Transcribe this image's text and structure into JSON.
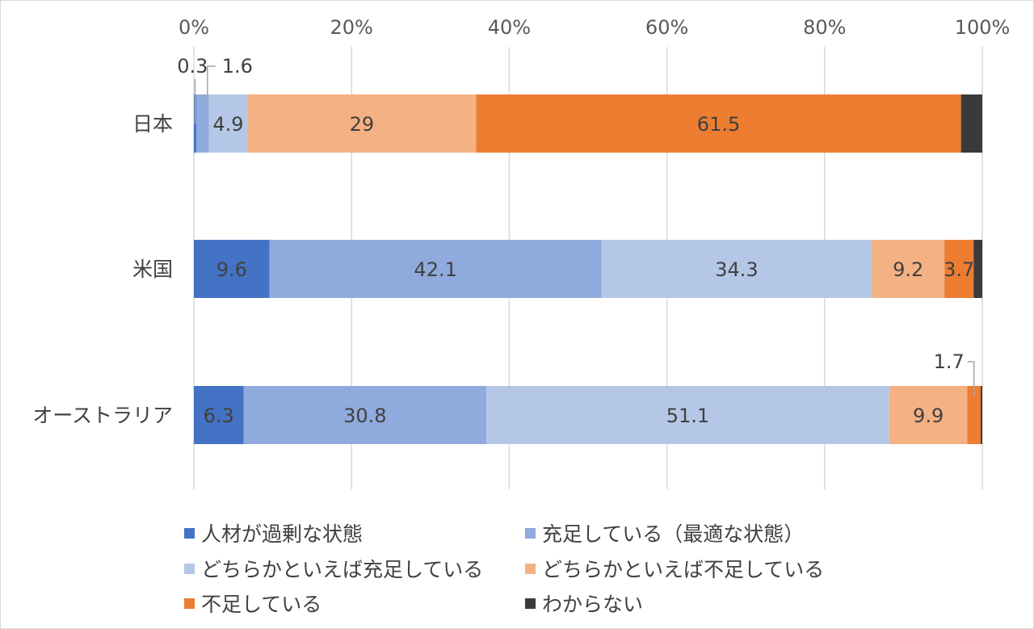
{
  "chart_data": {
    "type": "bar",
    "orientation": "horizontal",
    "stacked": "percent",
    "categories": [
      "日本",
      "米国",
      "オーストラリア"
    ],
    "series": [
      {
        "name": "人材が過剰な状態",
        "color": "#4472c4",
        "values": [
          0.3,
          9.6,
          6.3
        ],
        "labels": [
          "0.3",
          "9.6",
          "6.3"
        ]
      },
      {
        "name": "充足している（最適な状態）",
        "color": "#8faadc",
        "values": [
          1.6,
          42.1,
          30.8
        ],
        "labels": [
          "1.6",
          "42.1",
          "30.8"
        ]
      },
      {
        "name": "どちらかといえば充足している",
        "color": "#b4c7e7",
        "values": [
          4.9,
          34.3,
          51.1
        ],
        "labels": [
          "4.9",
          "34.3",
          "51.1"
        ]
      },
      {
        "name": "どちらかといえば不足している",
        "color": "#f4b183",
        "values": [
          29,
          9.2,
          9.9
        ],
        "labels": [
          "29",
          "9.2",
          "9.9"
        ]
      },
      {
        "name": "不足している",
        "color": "#ed7d31",
        "values": [
          61.5,
          3.7,
          1.7
        ],
        "labels": [
          "61.5",
          "3.7",
          "1.7"
        ]
      },
      {
        "name": "わからない",
        "color": "#3a3a3a",
        "values": [
          2.7,
          1.1,
          0.2
        ],
        "labels": [
          "",
          "",
          ""
        ]
      }
    ],
    "xlim": [
      0,
      100
    ],
    "xticks": [
      "0%",
      "20%",
      "40%",
      "60%",
      "80%",
      "100%"
    ],
    "grid": true,
    "legend_position": "bottom"
  }
}
